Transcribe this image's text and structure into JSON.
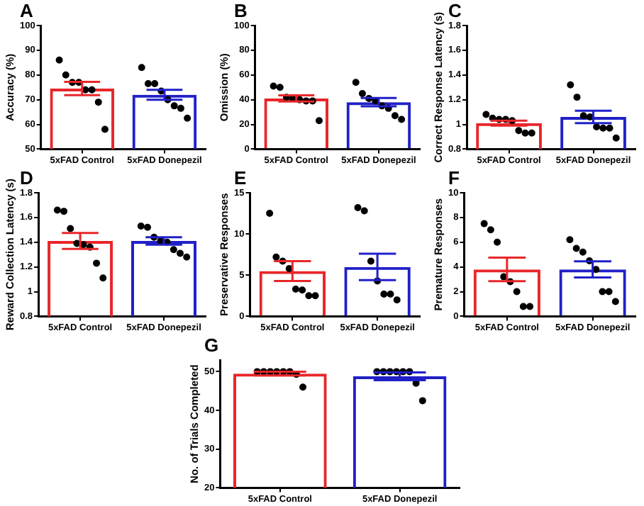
{
  "chart_data": [
    {
      "type": "bar",
      "title": "A",
      "ylabel": "Accuracy (%)",
      "categories": [
        "5xFAD Control",
        "5xFAD Donepezil"
      ],
      "ylim": [
        50,
        100
      ],
      "yticks": [
        50,
        60,
        70,
        80,
        90,
        100
      ],
      "marker": "circle",
      "series": [
        {
          "colors": [
            "#e8262a",
            "#2020c8"
          ],
          "values": [
            74.5,
            72
          ],
          "errors": [
            2.7,
            2
          ]
        },
        {
          "type": "scatter",
          "color": "#000000",
          "x": [
            "5xFAD Control",
            "5xFAD Control",
            "5xFAD Control",
            "5xFAD Control",
            "5xFAD Control",
            "5xFAD Control",
            "5xFAD Control",
            "5xFAD Control",
            "5xFAD Donepezil",
            "5xFAD Donepezil",
            "5xFAD Donepezil",
            "5xFAD Donepezil",
            "5xFAD Donepezil",
            "5xFAD Donepezil",
            "5xFAD Donepezil",
            "5xFAD Donepezil"
          ],
          "values": [
            86,
            80,
            77,
            77,
            74,
            74,
            69,
            58,
            83,
            76.5,
            76.5,
            73.5,
            70,
            67.5,
            66.5,
            62.5
          ]
        }
      ]
    },
    {
      "type": "bar",
      "title": "B",
      "ylabel": "Omission (%)",
      "categories": [
        "5xFAD Control",
        "5xFAD Donepezil"
      ],
      "ylim": [
        0,
        100
      ],
      "yticks": [
        0,
        20,
        40,
        60,
        80,
        100
      ],
      "marker": "circle",
      "series": [
        {
          "colors": [
            "#e8262a",
            "#2020c8"
          ],
          "values": [
            41,
            38
          ],
          "errors": [
            2.5,
            3.3
          ]
        },
        {
          "type": "scatter",
          "color": "#000000",
          "x": [
            "5xFAD Control",
            "5xFAD Control",
            "5xFAD Control",
            "5xFAD Control",
            "5xFAD Control",
            "5xFAD Control",
            "5xFAD Control",
            "5xFAD Control",
            "5xFAD Donepezil",
            "5xFAD Donepezil",
            "5xFAD Donepezil",
            "5xFAD Donepezil",
            "5xFAD Donepezil",
            "5xFAD Donepezil",
            "5xFAD Donepezil",
            "5xFAD Donepezil"
          ],
          "values": [
            51,
            50,
            42,
            41,
            40,
            39,
            39,
            23,
            54,
            45,
            41,
            39,
            35,
            33,
            27,
            24
          ]
        }
      ]
    },
    {
      "type": "bar",
      "title": "C",
      "ylabel": "Correct Response Latency (s)",
      "categories": [
        "5xFAD Control",
        "5xFAD Donepezil"
      ],
      "ylim": [
        0.8,
        1.8
      ],
      "yticks": [
        0.8,
        1.0,
        1.2,
        1.4,
        1.6,
        1.8
      ],
      "marker": "circle",
      "series": [
        {
          "colors": [
            "#e8262a",
            "#2020c8"
          ],
          "values": [
            1.01,
            1.06
          ],
          "errors": [
            0.02,
            0.05
          ]
        },
        {
          "type": "scatter",
          "color": "#000000",
          "x": [
            "5xFAD Control",
            "5xFAD Control",
            "5xFAD Control",
            "5xFAD Control",
            "5xFAD Control",
            "5xFAD Control",
            "5xFAD Control",
            "5xFAD Control",
            "5xFAD Donepezil",
            "5xFAD Donepezil",
            "5xFAD Donepezil",
            "5xFAD Donepezil",
            "5xFAD Donepezil",
            "5xFAD Donepezil",
            "5xFAD Donepezil",
            "5xFAD Donepezil"
          ],
          "values": [
            1.08,
            1.05,
            1.04,
            1.04,
            1.03,
            0.95,
            0.93,
            0.93,
            1.32,
            1.22,
            1.07,
            1.06,
            0.98,
            0.97,
            0.97,
            0.89
          ]
        }
      ]
    },
    {
      "type": "bar",
      "title": "D",
      "ylabel": "Reward Collection Latency (s)",
      "categories": [
        "5xFAD Control",
        "5xFAD Donepezil"
      ],
      "ylim": [
        0.8,
        1.8
      ],
      "yticks": [
        0.8,
        1.0,
        1.2,
        1.4,
        1.6,
        1.8
      ],
      "marker": "circle",
      "series": [
        {
          "colors": [
            "#e8262a",
            "#2020c8"
          ],
          "values": [
            1.41,
            1.41
          ],
          "errors": [
            0.065,
            0.03
          ]
        },
        {
          "type": "scatter",
          "color": "#000000",
          "x": [
            "5xFAD Control",
            "5xFAD Control",
            "5xFAD Control",
            "5xFAD Control",
            "5xFAD Control",
            "5xFAD Control",
            "5xFAD Control",
            "5xFAD Control",
            "5xFAD Donepezil",
            "5xFAD Donepezil",
            "5xFAD Donepezil",
            "5xFAD Donepezil",
            "5xFAD Donepezil",
            "5xFAD Donepezil",
            "5xFAD Donepezil",
            "5xFAD Donepezil"
          ],
          "values": [
            1.66,
            1.65,
            1.51,
            1.39,
            1.38,
            1.36,
            1.23,
            1.11,
            1.53,
            1.52,
            1.44,
            1.41,
            1.4,
            1.34,
            1.31,
            1.28
          ]
        }
      ]
    },
    {
      "type": "bar",
      "title": "E",
      "ylabel": "Preservative Responses",
      "categories": [
        "5xFAD Control",
        "5xFAD Donepezil"
      ],
      "ylim": [
        0,
        15
      ],
      "yticks": [
        0,
        5,
        10,
        15
      ],
      "marker": "circle",
      "series": [
        {
          "colors": [
            "#e8262a",
            "#2020c8"
          ],
          "values": [
            5.5,
            6
          ],
          "errors": [
            1.2,
            1.6
          ]
        },
        {
          "type": "scatter",
          "color": "#000000",
          "x": [
            "5xFAD Control",
            "5xFAD Control",
            "5xFAD Control",
            "5xFAD Control",
            "5xFAD Control",
            "5xFAD Control",
            "5xFAD Control",
            "5xFAD Control",
            "5xFAD Donepezil",
            "5xFAD Donepezil",
            "5xFAD Donepezil",
            "5xFAD Donepezil",
            "5xFAD Donepezil",
            "5xFAD Donepezil",
            "5xFAD Donepezil"
          ],
          "values": [
            12.5,
            7.2,
            6.7,
            5.8,
            3.3,
            3.2,
            2.5,
            2.5,
            13.2,
            12.8,
            6.7,
            4.3,
            2.7,
            2.7,
            2.0
          ]
        }
      ]
    },
    {
      "type": "bar",
      "title": "F",
      "ylabel": "Premature Responses",
      "categories": [
        "5xFAD Control",
        "5xFAD Donepezil"
      ],
      "ylim": [
        0,
        10
      ],
      "yticks": [
        0,
        2,
        4,
        6,
        8,
        10
      ],
      "marker": "circle",
      "series": [
        {
          "colors": [
            "#e8262a",
            "#2020c8"
          ],
          "values": [
            3.8,
            3.8
          ],
          "errors": [
            0.95,
            0.65
          ]
        },
        {
          "type": "scatter",
          "color": "#000000",
          "x": [
            "5xFAD Control",
            "5xFAD Control",
            "5xFAD Control",
            "5xFAD Control",
            "5xFAD Control",
            "5xFAD Control",
            "5xFAD Control",
            "5xFAD Control",
            "5xFAD Donepezil",
            "5xFAD Donepezil",
            "5xFAD Donepezil",
            "5xFAD Donepezil",
            "5xFAD Donepezil",
            "5xFAD Donepezil",
            "5xFAD Donepezil",
            "5xFAD Donepezil"
          ],
          "values": [
            7.5,
            7.0,
            6.0,
            3.2,
            2.8,
            2.0,
            0.8,
            0.8,
            6.2,
            5.5,
            5.2,
            4.5,
            3.8,
            2.0,
            2.0,
            1.2
          ]
        }
      ]
    },
    {
      "type": "bar",
      "title": "G",
      "ylabel": "No. of Trials Completed",
      "categories": [
        "5xFAD Control",
        "5xFAD Donepezil"
      ],
      "ylim": [
        20,
        53
      ],
      "yticks": [
        20,
        30,
        40,
        50
      ],
      "marker": "circle",
      "series": [
        {
          "colors": [
            "#e8262a",
            "#2020c8"
          ],
          "values": [
            49.5,
            48.8
          ],
          "errors": [
            0.5,
            1
          ]
        },
        {
          "type": "scatter",
          "color": "#000000",
          "x": [
            "5xFAD Control",
            "5xFAD Control",
            "5xFAD Control",
            "5xFAD Control",
            "5xFAD Control",
            "5xFAD Control",
            "5xFAD Control",
            "5xFAD Control",
            "5xFAD Donepezil",
            "5xFAD Donepezil",
            "5xFAD Donepezil",
            "5xFAD Donepezil",
            "5xFAD Donepezil",
            "5xFAD Donepezil",
            "5xFAD Donepezil",
            "5xFAD Donepezil"
          ],
          "values": [
            50,
            50,
            50,
            50,
            50,
            50,
            49.3,
            46,
            50,
            50,
            50,
            50,
            50,
            50,
            47,
            42.5
          ]
        }
      ]
    }
  ]
}
